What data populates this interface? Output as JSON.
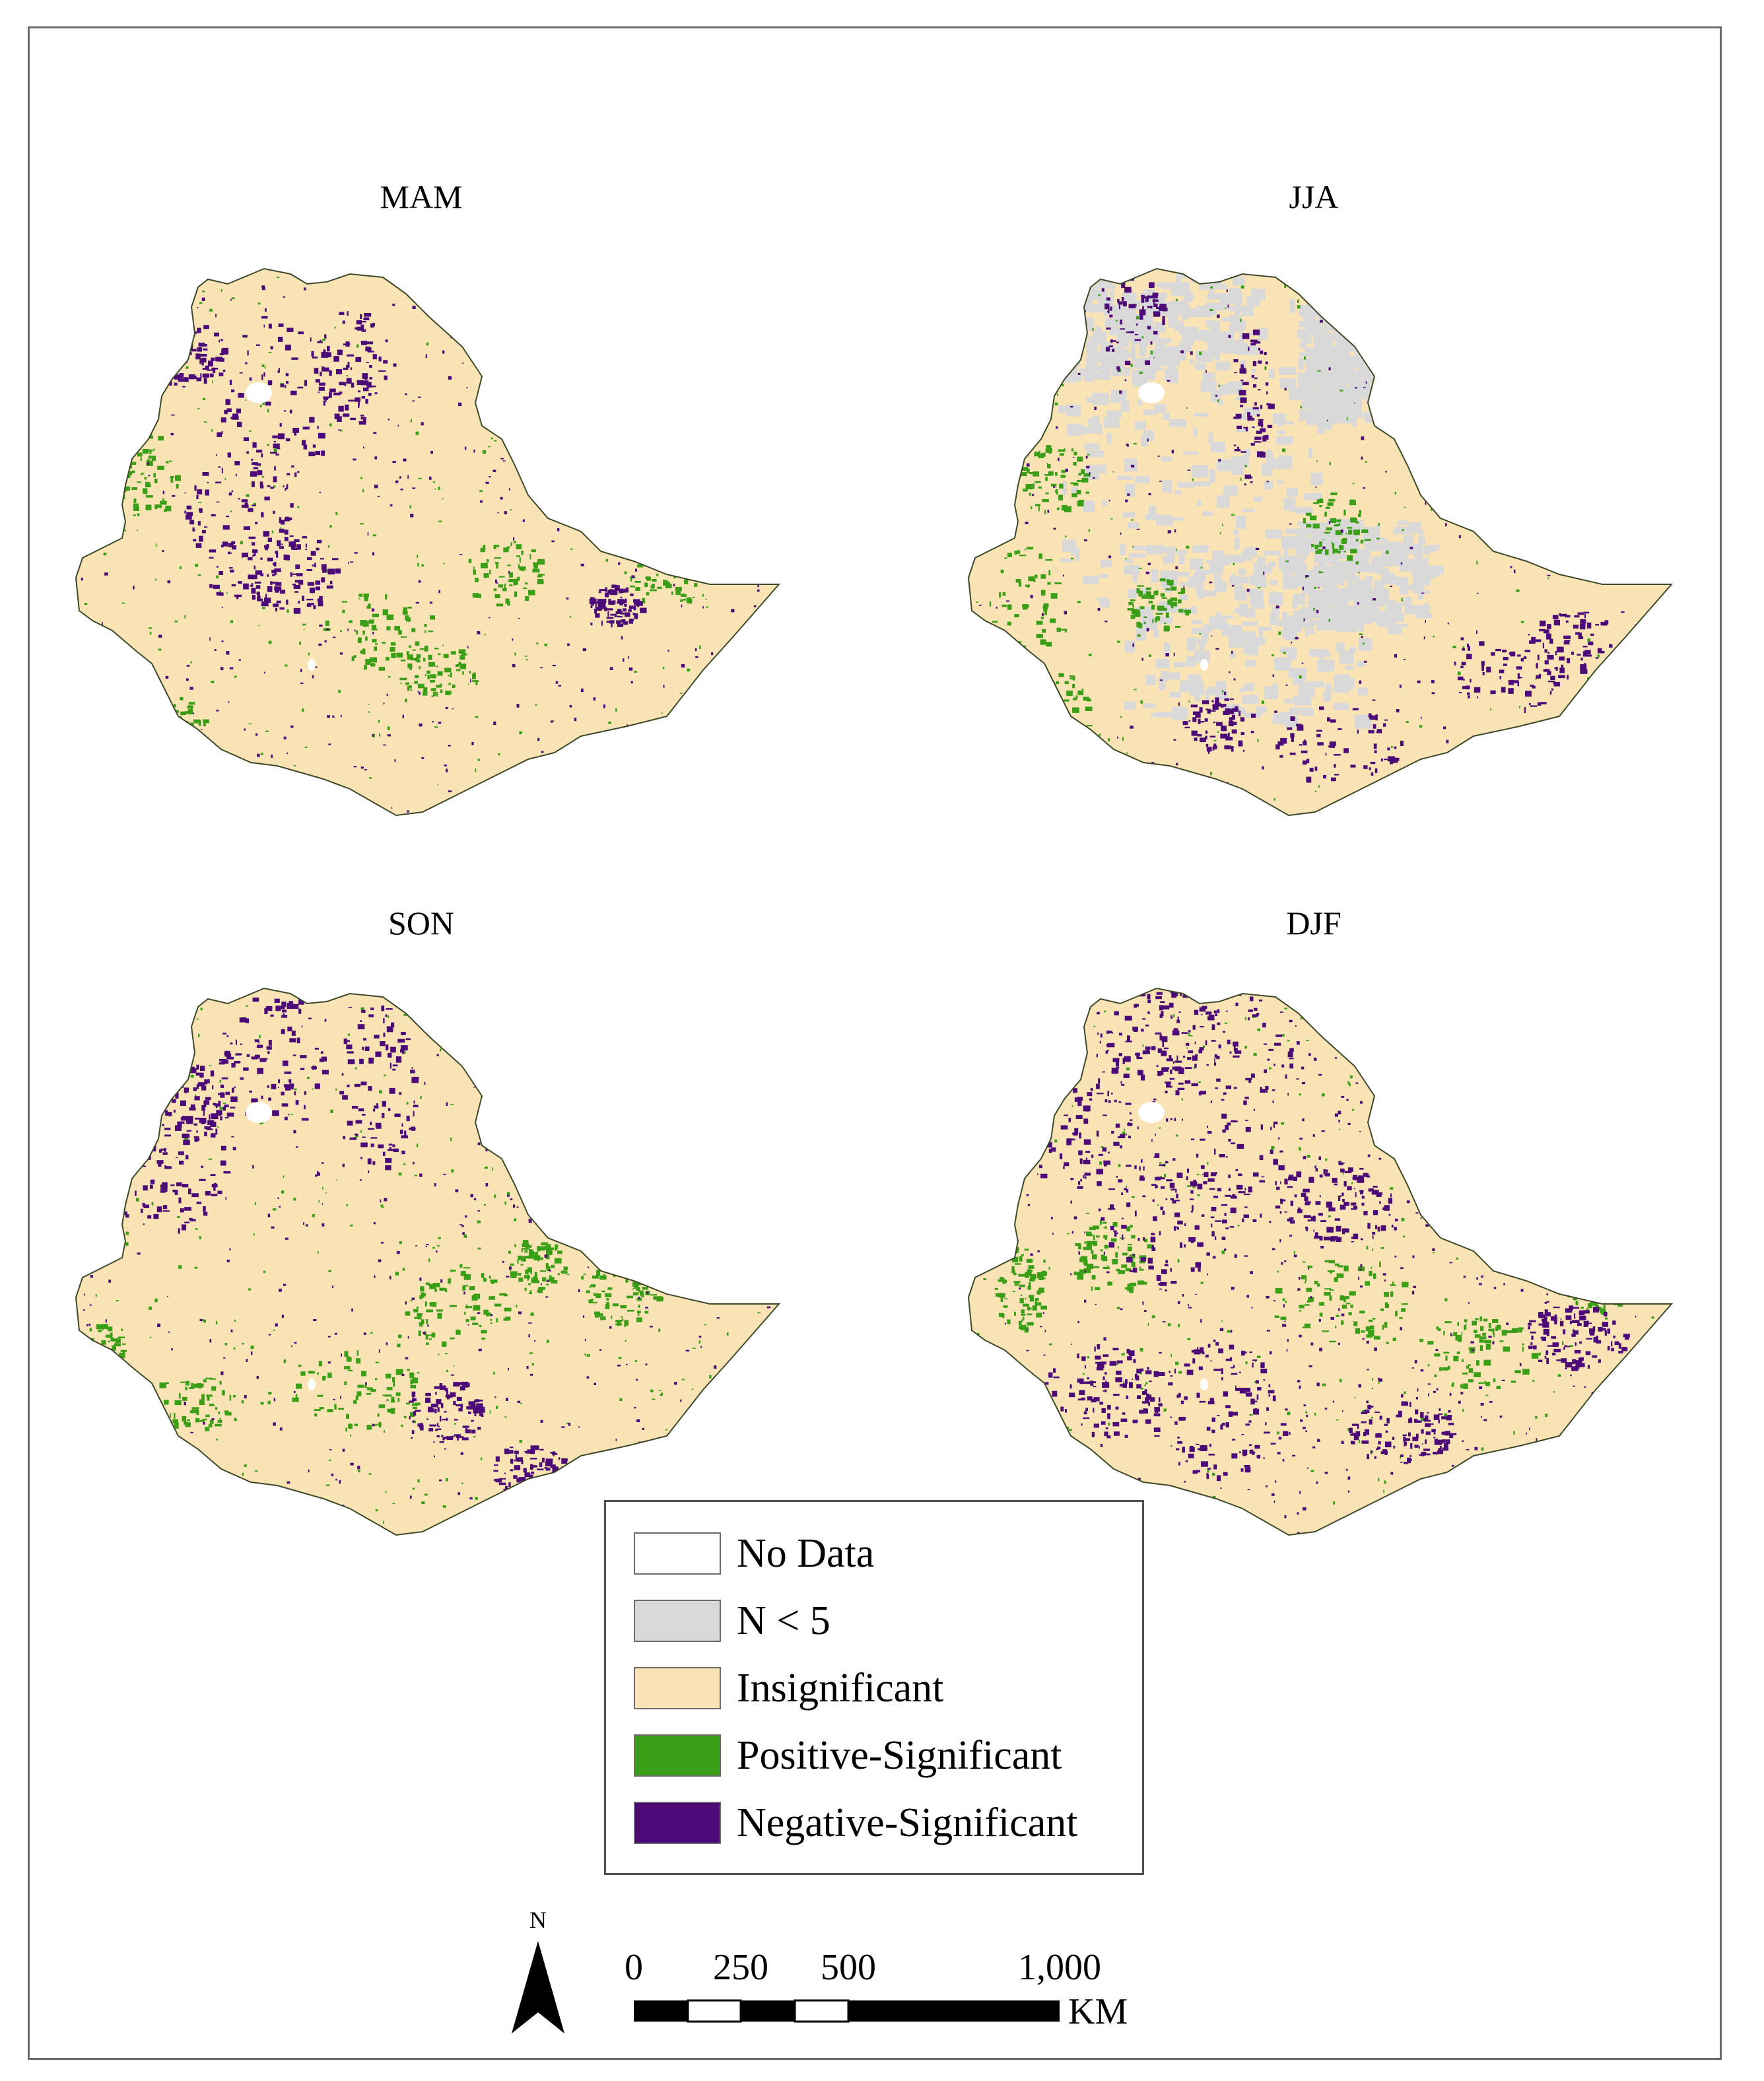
{
  "panels": [
    {
      "title": "MAM"
    },
    {
      "title": "JJA"
    },
    {
      "title": "SON"
    },
    {
      "title": "DJF"
    }
  ],
  "legend": {
    "items": [
      {
        "label": "No Data",
        "color": "#ffffff"
      },
      {
        "label": "N < 5",
        "color": "#d9d9d9"
      },
      {
        "label": "Insignificant",
        "color": "#fae3b4"
      },
      {
        "label": "Positive-Significant",
        "color": "#3a9e17"
      },
      {
        "label": "Negative-Significant",
        "color": "#4b0a78"
      }
    ]
  },
  "north_arrow": {
    "label": "N"
  },
  "scale_bar": {
    "ticks": [
      "0",
      "250",
      "500",
      "1,000"
    ],
    "unit": "KM"
  }
}
